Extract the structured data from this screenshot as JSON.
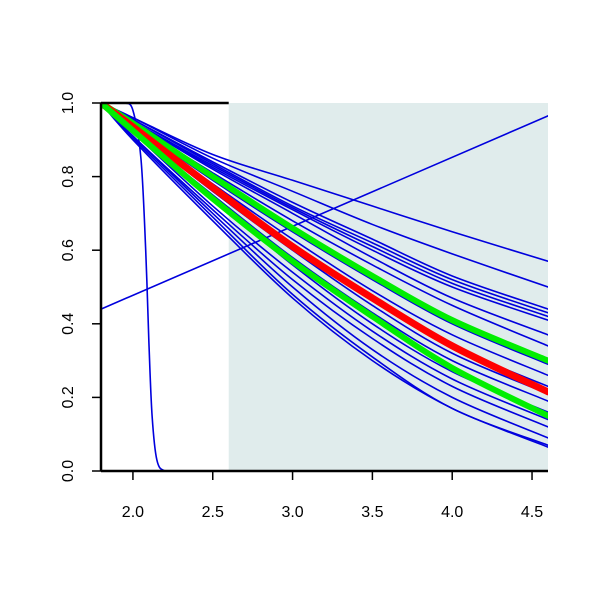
{
  "chart_data": {
    "type": "line",
    "title": "",
    "xlabel": "",
    "ylabel": "",
    "xlim": [
      1.8,
      4.6
    ],
    "ylim": [
      0.0,
      1.0
    ],
    "x_ticks": [
      2.0,
      2.5,
      3.0,
      3.5,
      4.0,
      4.5
    ],
    "x_tick_labels": [
      "2.0",
      "2.5",
      "3.0",
      "3.5",
      "4.0",
      "4.5"
    ],
    "y_ticks": [
      0.0,
      0.2,
      0.4,
      0.6,
      0.8,
      1.0
    ],
    "y_tick_labels": [
      "0.0",
      "0.2",
      "0.4",
      "0.6",
      "0.8",
      "1.0"
    ],
    "grid": false,
    "legend": "none",
    "shaded_region": {
      "x_from": 2.6,
      "x_to": 4.6,
      "color": "#e0ecec"
    },
    "colors": {
      "blue": "#0000dd",
      "red": "#ff0000",
      "green": "#00ee00"
    },
    "series": [
      {
        "color": "blue",
        "width": 1.6,
        "x": [
          1.8,
          2.0,
          2.5,
          3.0,
          3.5,
          4.0,
          4.6
        ],
        "y": [
          1.0,
          0.96,
          0.86,
          0.79,
          0.72,
          0.65,
          0.57
        ]
      },
      {
        "color": "blue",
        "width": 1.6,
        "x": [
          1.8,
          2.0,
          2.5,
          3.0,
          3.5,
          4.0,
          4.6
        ],
        "y": [
          1.0,
          0.96,
          0.85,
          0.76,
          0.67,
          0.59,
          0.5
        ]
      },
      {
        "color": "blue",
        "width": 1.6,
        "x": [
          1.8,
          2.0,
          2.5,
          3.0,
          3.5,
          4.0,
          4.6
        ],
        "y": [
          1.0,
          0.955,
          0.84,
          0.73,
          0.63,
          0.53,
          0.44
        ]
      },
      {
        "color": "blue",
        "width": 1.6,
        "x": [
          1.8,
          2.0,
          2.5,
          3.0,
          3.5,
          4.0,
          4.6
        ],
        "y": [
          1.0,
          0.955,
          0.835,
          0.72,
          0.62,
          0.52,
          0.43
        ]
      },
      {
        "color": "blue",
        "width": 1.6,
        "x": [
          1.8,
          2.0,
          2.5,
          3.0,
          3.5,
          4.0,
          4.6
        ],
        "y": [
          1.0,
          0.95,
          0.83,
          0.715,
          0.61,
          0.51,
          0.42
        ]
      },
      {
        "color": "blue",
        "width": 1.6,
        "x": [
          1.8,
          2.0,
          2.5,
          3.0,
          3.5,
          4.0,
          4.6
        ],
        "y": [
          1.0,
          0.95,
          0.825,
          0.71,
          0.6,
          0.5,
          0.41
        ]
      },
      {
        "color": "blue",
        "width": 1.6,
        "x": [
          1.8,
          2.0,
          2.5,
          3.0,
          3.5,
          4.0,
          4.6
        ],
        "y": [
          1.0,
          0.95,
          0.82,
          0.7,
          0.58,
          0.47,
          0.37
        ]
      },
      {
        "color": "blue",
        "width": 1.6,
        "x": [
          1.8,
          2.0,
          2.5,
          3.0,
          3.5,
          4.0,
          4.6
        ],
        "y": [
          1.0,
          0.945,
          0.81,
          0.68,
          0.56,
          0.45,
          0.34
        ]
      },
      {
        "color": "blue",
        "width": 1.6,
        "x": [
          1.8,
          2.0,
          2.5,
          3.0,
          3.5,
          4.0,
          4.6
        ],
        "y": [
          1.0,
          0.94,
          0.79,
          0.65,
          0.52,
          0.4,
          0.29
        ]
      },
      {
        "color": "blue",
        "width": 1.6,
        "x": [
          1.8,
          2.0,
          2.5,
          3.0,
          3.5,
          4.0,
          4.6
        ],
        "y": [
          1.0,
          0.935,
          0.78,
          0.63,
          0.49,
          0.37,
          0.26
        ]
      },
      {
        "color": "blue",
        "width": 1.6,
        "x": [
          1.8,
          2.0,
          2.5,
          3.0,
          3.5,
          4.0,
          4.6
        ],
        "y": [
          1.0,
          0.93,
          0.77,
          0.61,
          0.47,
          0.34,
          0.23
        ]
      },
      {
        "color": "blue",
        "width": 1.6,
        "x": [
          1.8,
          2.0,
          2.5,
          3.0,
          3.5,
          4.0,
          4.6
        ],
        "y": [
          1.0,
          0.93,
          0.76,
          0.6,
          0.45,
          0.32,
          0.21
        ]
      },
      {
        "color": "blue",
        "width": 1.6,
        "x": [
          1.8,
          2.0,
          2.5,
          3.0,
          3.5,
          4.0,
          4.6
        ],
        "y": [
          1.0,
          0.925,
          0.75,
          0.58,
          0.43,
          0.3,
          0.19
        ]
      },
      {
        "color": "blue",
        "width": 1.6,
        "x": [
          1.8,
          2.0,
          2.5,
          3.0,
          3.5,
          4.0,
          4.6
        ],
        "y": [
          1.0,
          0.92,
          0.74,
          0.56,
          0.4,
          0.27,
          0.16
        ]
      },
      {
        "color": "blue",
        "width": 1.6,
        "x": [
          1.8,
          2.0,
          2.5,
          3.0,
          3.5,
          4.0,
          4.6
        ],
        "y": [
          1.0,
          0.92,
          0.72,
          0.54,
          0.38,
          0.25,
          0.14
        ]
      },
      {
        "color": "blue",
        "width": 1.6,
        "x": [
          1.8,
          2.0,
          2.5,
          3.0,
          3.5,
          4.0,
          4.6
        ],
        "y": [
          1.0,
          0.91,
          0.71,
          0.52,
          0.36,
          0.23,
          0.12
        ]
      },
      {
        "color": "blue",
        "width": 1.6,
        "x": [
          1.8,
          2.0,
          2.5,
          3.0,
          3.5,
          4.0,
          4.6
        ],
        "y": [
          1.0,
          0.91,
          0.7,
          0.5,
          0.33,
          0.2,
          0.09
        ]
      },
      {
        "color": "blue",
        "width": 1.6,
        "x": [
          1.8,
          2.0,
          2.5,
          3.0,
          3.5,
          4.0,
          4.6
        ],
        "y": [
          1.0,
          0.905,
          0.69,
          0.48,
          0.31,
          0.17,
          0.07
        ]
      },
      {
        "color": "blue",
        "width": 1.6,
        "x": [
          1.8,
          2.0,
          2.5,
          3.0,
          3.5,
          4.0,
          4.6
        ],
        "y": [
          1.0,
          0.9,
          0.68,
          0.47,
          0.3,
          0.17,
          0.065
        ]
      },
      {
        "color": "blue",
        "width": 1.6,
        "x": [
          1.8,
          1.9,
          1.95,
          2.0,
          2.05,
          2.08,
          2.1,
          2.12,
          2.15,
          2.2,
          2.3,
          4.6
        ],
        "y": [
          1.0,
          1.0,
          1.0,
          0.98,
          0.85,
          0.6,
          0.35,
          0.15,
          0.03,
          0.0,
          0.0,
          0.0
        ]
      },
      {
        "color": "blue",
        "width": 1.6,
        "x": [
          1.8,
          4.6
        ],
        "y": [
          0.44,
          0.965
        ]
      },
      {
        "color": "green",
        "width": 6,
        "x": [
          1.8,
          2.0,
          2.5,
          3.0,
          3.5,
          4.0,
          4.6
        ],
        "y": [
          1.0,
          0.945,
          0.8,
          0.66,
          0.53,
          0.41,
          0.3
        ]
      },
      {
        "color": "red",
        "width": 7,
        "x": [
          1.8,
          2.0,
          2.5,
          3.0,
          3.5,
          4.0,
          4.6
        ],
        "y": [
          1.0,
          0.935,
          0.77,
          0.61,
          0.47,
          0.34,
          0.215
        ]
      },
      {
        "color": "green",
        "width": 6,
        "x": [
          1.8,
          2.0,
          2.5,
          3.0,
          3.5,
          4.0,
          4.6
        ],
        "y": [
          1.0,
          0.925,
          0.74,
          0.57,
          0.42,
          0.28,
          0.15
        ]
      }
    ]
  }
}
